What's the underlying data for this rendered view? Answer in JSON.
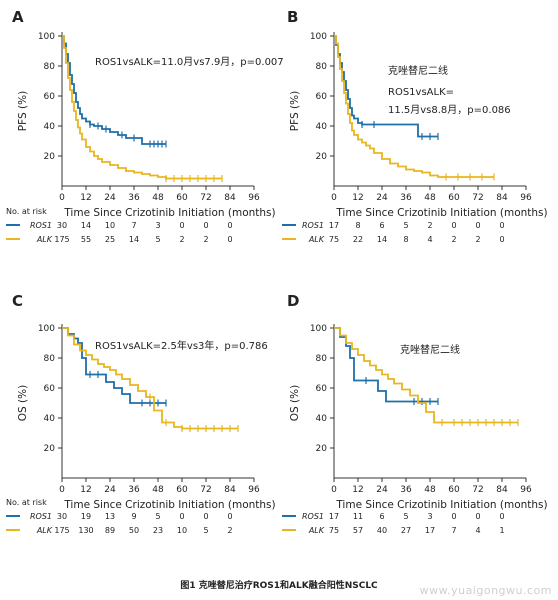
{
  "figure_caption": "图1 克唑替尼治疗ROS1和ALK融合阳性NSCLC",
  "watermark": "www.yuaigongwu.com",
  "colors": {
    "ros1": "#1f6fa8",
    "alk": "#e8b61e",
    "axis": "#333333",
    "text": "#222222"
  },
  "chart_data": [
    {
      "panel": "A",
      "type": "line",
      "title": "",
      "annotations": [
        "ROS1vsALK=11.0月vs7.9月，p=0.007"
      ],
      "xlabel": "Time Since Crizotinib Initiation (months)",
      "ylabel": "PFS (%)",
      "xlim": [
        0,
        96
      ],
      "ylim": [
        0,
        100
      ],
      "xticks": [
        0,
        12,
        24,
        36,
        48,
        60,
        72,
        84,
        96
      ],
      "yticks": [
        20,
        40,
        60,
        80,
        100
      ],
      "series": [
        {
          "name": "ROS1",
          "color_key": "ros1",
          "x": [
            0,
            1,
            2,
            3,
            4,
            5,
            6,
            7,
            8,
            9,
            10,
            12,
            14,
            16,
            20,
            24,
            28,
            32,
            40,
            44,
            52
          ],
          "y": [
            100,
            95,
            88,
            82,
            74,
            68,
            62,
            56,
            52,
            48,
            45,
            43,
            41,
            40,
            38,
            36,
            34,
            32,
            28,
            28,
            28
          ],
          "censored_x": [
            14,
            18,
            22,
            30,
            36,
            44,
            46,
            48,
            50,
            52
          ]
        },
        {
          "name": "ALK",
          "color_key": "alk",
          "x": [
            0,
            1,
            2,
            3,
            4,
            5,
            6,
            7,
            8,
            9,
            10,
            12,
            14,
            16,
            18,
            20,
            24,
            28,
            32,
            36,
            40,
            44,
            48,
            52,
            60,
            70,
            80
          ],
          "y": [
            100,
            92,
            82,
            72,
            64,
            56,
            50,
            44,
            39,
            35,
            31,
            26,
            23,
            20,
            18,
            16,
            14,
            12,
            10,
            9,
            8,
            7,
            6,
            5,
            5,
            5,
            5
          ],
          "censored_x": [
            52,
            56,
            60,
            64,
            68,
            72,
            76,
            80
          ]
        }
      ],
      "risk_table": {
        "header": "No. at risk",
        "rows": [
          {
            "name": "ROS1",
            "color_key": "ros1",
            "values": [
              "30",
              "14",
              "10",
              "7",
              "3",
              "0",
              "0",
              "0"
            ]
          },
          {
            "name": "ALK",
            "color_key": "alk",
            "values": [
              "175",
              "55",
              "25",
              "14",
              "5",
              "2",
              "2",
              "0"
            ]
          }
        ]
      }
    },
    {
      "panel": "B",
      "type": "line",
      "title": "",
      "annotations": [
        "克唑替尼二线",
        "ROS1vsALK=",
        "11.5月vs8.8月，p=0.086"
      ],
      "xlabel": "Time Since Crizotinib Initiation (months)",
      "ylabel": "PFS (%)",
      "xlim": [
        0,
        96
      ],
      "ylim": [
        0,
        100
      ],
      "xticks": [
        0,
        12,
        24,
        36,
        48,
        60,
        72,
        84,
        96
      ],
      "yticks": [
        20,
        40,
        60,
        80,
        100
      ],
      "series": [
        {
          "name": "ROS1",
          "color_key": "ros1",
          "x": [
            0,
            1,
            2,
            3,
            4,
            5,
            6,
            7,
            8,
            9,
            10,
            11,
            12,
            14,
            40,
            42,
            52
          ],
          "y": [
            100,
            94,
            88,
            82,
            76,
            70,
            64,
            58,
            52,
            47,
            45,
            45,
            42,
            41,
            41,
            33,
            33
          ],
          "censored_x": [
            14,
            20,
            44,
            48,
            52
          ]
        },
        {
          "name": "ALK",
          "color_key": "alk",
          "x": [
            0,
            1,
            2,
            3,
            4,
            5,
            6,
            7,
            8,
            9,
            10,
            12,
            14,
            16,
            18,
            20,
            24,
            28,
            32,
            36,
            40,
            44,
            48,
            52,
            60,
            70,
            80
          ],
          "y": [
            100,
            95,
            86,
            78,
            70,
            62,
            55,
            48,
            42,
            37,
            34,
            31,
            29,
            27,
            25,
            22,
            18,
            15,
            13,
            11,
            10,
            9,
            7,
            6,
            6,
            6,
            6
          ],
          "censored_x": [
            56,
            62,
            68,
            74,
            80
          ]
        }
      ],
      "risk_table": {
        "header": "",
        "rows": [
          {
            "name": "ROS1",
            "color_key": "ros1",
            "values": [
              "17",
              "8",
              "6",
              "5",
              "2",
              "0",
              "0",
              "0"
            ]
          },
          {
            "name": "ALK",
            "color_key": "alk",
            "values": [
              "75",
              "22",
              "14",
              "8",
              "4",
              "2",
              "2",
              "0"
            ]
          }
        ]
      }
    },
    {
      "panel": "C",
      "type": "line",
      "title": "",
      "annotations": [
        "ROS1vsALK=2.5年vs3年，p=0.786"
      ],
      "xlabel": "Time Since Crizotinib Initiation (months)",
      "ylabel": "OS (%)",
      "xlim": [
        0,
        96
      ],
      "ylim": [
        0,
        100
      ],
      "xticks": [
        0,
        12,
        24,
        36,
        48,
        60,
        72,
        84,
        96
      ],
      "yticks": [
        20,
        40,
        60,
        80,
        100
      ],
      "series": [
        {
          "name": "ROS1",
          "color_key": "ros1",
          "x": [
            0,
            3,
            6,
            8,
            10,
            12,
            14,
            18,
            22,
            26,
            30,
            34,
            40,
            46,
            52
          ],
          "y": [
            100,
            96,
            93,
            90,
            80,
            69,
            69,
            69,
            64,
            60,
            56,
            50,
            50,
            50,
            50
          ],
          "censored_x": [
            14,
            18,
            40,
            44,
            48,
            52
          ]
        },
        {
          "name": "ALK",
          "color_key": "alk",
          "x": [
            0,
            3,
            6,
            9,
            12,
            15,
            18,
            21,
            24,
            27,
            30,
            34,
            38,
            42,
            46,
            50,
            56,
            60,
            70,
            80,
            88
          ],
          "y": [
            100,
            95,
            89,
            85,
            82,
            79,
            76,
            74,
            72,
            69,
            66,
            62,
            58,
            54,
            45,
            37,
            34,
            33,
            33,
            33,
            33
          ],
          "censored_x": [
            44,
            52,
            60,
            64,
            68,
            72,
            76,
            80,
            84,
            88
          ]
        }
      ],
      "risk_table": {
        "header": "No. at risk",
        "rows": [
          {
            "name": "ROS1",
            "color_key": "ros1",
            "values": [
              "30",
              "19",
              "13",
              "9",
              "5",
              "0",
              "0",
              "0"
            ]
          },
          {
            "name": "ALK",
            "color_key": "alk",
            "values": [
              "175",
              "130",
              "89",
              "50",
              "23",
              "10",
              "5",
              "2"
            ]
          }
        ]
      }
    },
    {
      "panel": "D",
      "type": "line",
      "title": "",
      "annotations": [
        "克唑替尼二线"
      ],
      "xlabel": "Time Since Crizotinib Initiation (months)",
      "ylabel": "OS (%)",
      "xlim": [
        0,
        96
      ],
      "ylim": [
        0,
        100
      ],
      "xticks": [
        0,
        12,
        24,
        36,
        48,
        60,
        72,
        84,
        96
      ],
      "yticks": [
        20,
        40,
        60,
        80,
        100
      ],
      "series": [
        {
          "name": "ROS1",
          "color_key": "ros1",
          "x": [
            0,
            3,
            6,
            8,
            10,
            12,
            14,
            18,
            22,
            26,
            30,
            36,
            40,
            46,
            52
          ],
          "y": [
            100,
            94,
            88,
            80,
            65,
            65,
            65,
            65,
            58,
            51,
            51,
            51,
            51,
            51,
            51
          ],
          "censored_x": [
            16,
            40,
            44,
            48,
            52
          ]
        },
        {
          "name": "ALK",
          "color_key": "alk",
          "x": [
            0,
            3,
            6,
            9,
            12,
            15,
            18,
            21,
            24,
            27,
            30,
            34,
            38,
            42,
            46,
            50,
            56,
            60,
            70,
            80,
            92
          ],
          "y": [
            100,
            95,
            90,
            86,
            82,
            78,
            75,
            72,
            69,
            66,
            63,
            59,
            55,
            50,
            44,
            37,
            37,
            37,
            37,
            37,
            37
          ],
          "censored_x": [
            54,
            60,
            64,
            68,
            72,
            76,
            80,
            84,
            88,
            92
          ]
        }
      ],
      "risk_table": {
        "header": "",
        "rows": [
          {
            "name": "ROS1",
            "color_key": "ros1",
            "values": [
              "17",
              "11",
              "6",
              "5",
              "3",
              "0",
              "0",
              "0"
            ]
          },
          {
            "name": "ALK",
            "color_key": "alk",
            "values": [
              "75",
              "57",
              "40",
              "27",
              "17",
              "7",
              "4",
              "1"
            ]
          }
        ]
      }
    }
  ]
}
